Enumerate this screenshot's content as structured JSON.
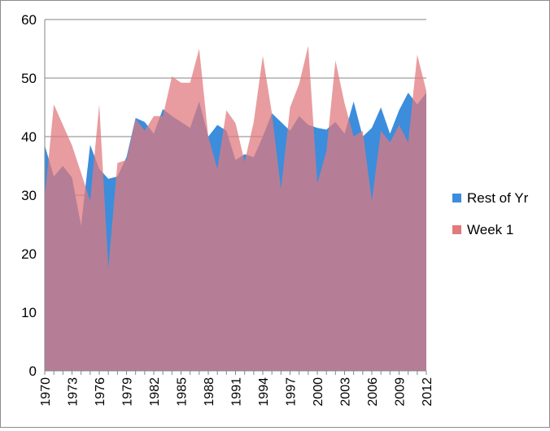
{
  "chart_data": {
    "type": "area",
    "x": [
      1970,
      1971,
      1972,
      1973,
      1974,
      1975,
      1976,
      1977,
      1978,
      1979,
      1980,
      1981,
      1982,
      1983,
      1984,
      1985,
      1986,
      1987,
      1988,
      1989,
      1990,
      1991,
      1992,
      1993,
      1994,
      1995,
      1996,
      1997,
      1998,
      1999,
      2000,
      2001,
      2002,
      2003,
      2004,
      2005,
      2006,
      2007,
      2008,
      2009,
      2010,
      2011,
      2012
    ],
    "x_tick_labels": [
      "1970",
      "1973",
      "1976",
      "1979",
      "1982",
      "1985",
      "1988",
      "1991",
      "1994",
      "1997",
      "2000",
      "2003",
      "2006",
      "2009",
      "2012"
    ],
    "y_tick_labels": [
      "0",
      "10",
      "20",
      "30",
      "40",
      "50",
      "60"
    ],
    "ylim": [
      0,
      60
    ],
    "grid": "horizontal",
    "legend_position": "right",
    "series": [
      {
        "name": "Rest of Yr",
        "color": "#3c8ddc",
        "values": [
          38.5,
          33.2,
          35.0,
          33.0,
          24.8,
          38.6,
          34.5,
          32.8,
          33.2,
          36.5,
          43.2,
          42.5,
          40.5,
          44.7,
          43.5,
          42.5,
          41.5,
          46.0,
          40.0,
          42.0,
          41.0,
          36.0,
          37.0,
          36.5,
          40.0,
          44.0,
          42.5,
          41.0,
          43.5,
          42.0,
          41.5,
          41.2,
          42.5,
          40.5,
          46.0,
          40.0,
          41.5,
          45.0,
          40.5,
          44.5,
          47.5,
          45.5,
          47.5
        ]
      },
      {
        "name": "Week 1",
        "color": "#e07a7d",
        "values": [
          29.5,
          45.5,
          42.0,
          38.5,
          33.8,
          29.0,
          45.5,
          17.5,
          35.5,
          36.0,
          43.0,
          41.0,
          43.5,
          43.5,
          50.3,
          49.2,
          49.2,
          55.0,
          40.0,
          34.5,
          44.5,
          42.3,
          35.7,
          42.5,
          53.8,
          44.0,
          31.0,
          45.0,
          49.0,
          55.5,
          32.0,
          37.5,
          53.0,
          45.7,
          40.0,
          41.0,
          29.0,
          41.0,
          39.0,
          42.0,
          39.0,
          54.0,
          47.8
        ]
      }
    ]
  }
}
